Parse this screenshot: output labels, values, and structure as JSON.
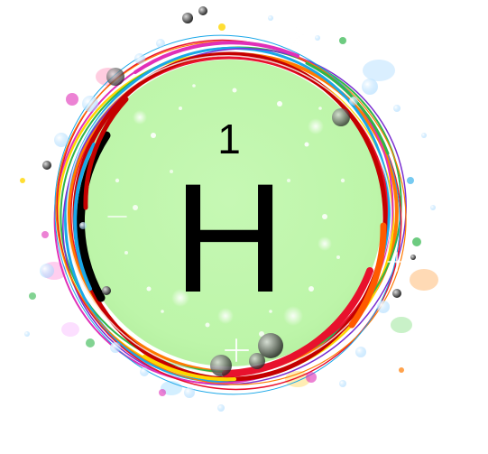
{
  "element": {
    "atomic_number": "1",
    "symbol": "H"
  },
  "colors": {
    "disc_fill": "#bdf5a9",
    "text": "#000000",
    "ring_palette": [
      "#e8112d",
      "#ff7a00",
      "#ffd600",
      "#2fb54a",
      "#1aa7e8",
      "#7a2fd0",
      "#e02fb8",
      "#000000",
      "#c40000"
    ]
  }
}
